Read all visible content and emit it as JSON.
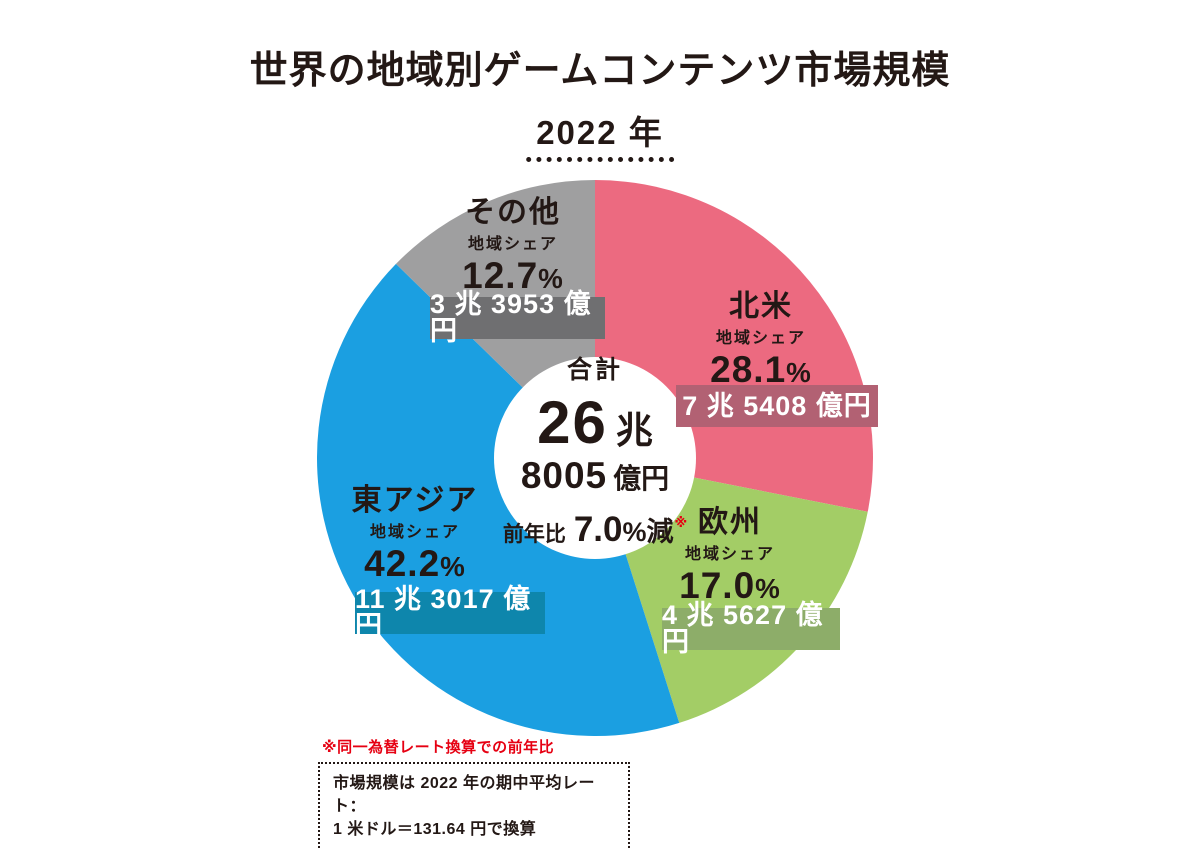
{
  "title": "世界の地域別ゲームコンテンツ市場規模",
  "year_label": "2022 年",
  "footnote_red": "※同一為替レート換算での前年比",
  "note_box": {
    "line1": "市場規模は 2022 年の期中平均レート：",
    "line2": "1 米ドル＝131.64 円で換算"
  },
  "chart_data": {
    "type": "pie",
    "donut": true,
    "title": "世界の地域別ゲームコンテンツ市場規模（2022年）",
    "start_angle_deg": 0,
    "direction": "clockwise",
    "unit": "億円",
    "share_label": "地域シェア",
    "percent_sign": "%",
    "center_total": {
      "label": "合計",
      "cho_num": "26",
      "cho_unit": "兆",
      "oku_num": "8005",
      "oku_unit": "億円",
      "yoy_label": "前年比",
      "yoy_num": "7.0",
      "yoy_suffix": "%減",
      "note_mark": "※",
      "total_oku_yen": 268005
    },
    "segments": [
      {
        "name": "北米",
        "share_pct": 28.1,
        "share_num": "28.1",
        "value_display": "7 兆 5408 億円",
        "value_oku_yen": 75408,
        "color": "#ec6a80",
        "box_color": "#b26173"
      },
      {
        "name": "欧州",
        "share_pct": 17.0,
        "share_num": "17.0",
        "value_display": "4 兆 5627 億円",
        "value_oku_yen": 45627,
        "color": "#a3cd66",
        "box_color": "#8dad69"
      },
      {
        "name": "東アジア",
        "share_pct": 42.2,
        "share_num": "42.2",
        "value_display": "11 兆 3017 億円",
        "value_oku_yen": 113017,
        "color": "#1b9fe1",
        "box_color": "#0e86ac"
      },
      {
        "name": "その他",
        "share_pct": 12.7,
        "share_num": "12.7",
        "value_display": "3 兆 3953 億円",
        "value_oku_yen": 33953,
        "color": "#9f9fa0",
        "box_color": "#6f6f71"
      }
    ]
  }
}
